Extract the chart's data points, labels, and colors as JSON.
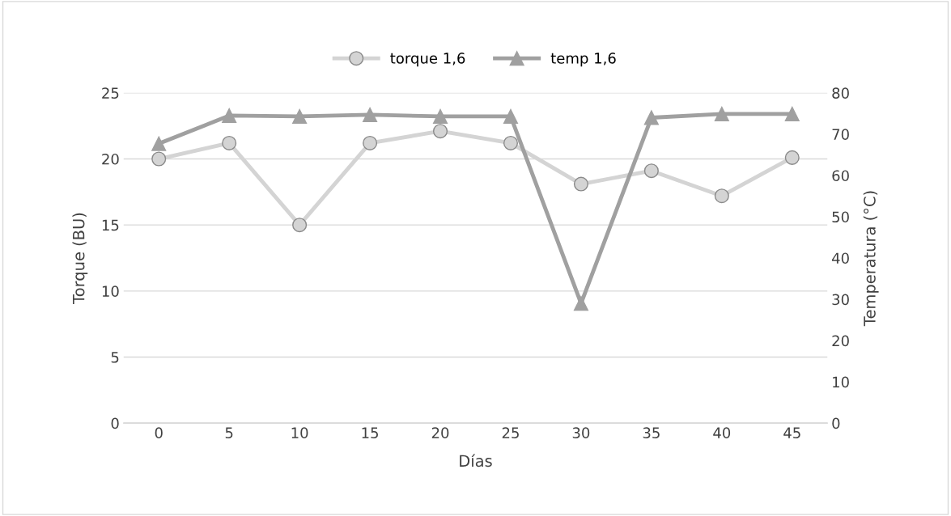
{
  "chart_data": {
    "type": "line",
    "xlabel": "Días",
    "ylabel": "Torque (BU)",
    "y2label": "Temperatura (°C)",
    "categories": [
      "0",
      "5",
      "10",
      "15",
      "20",
      "25",
      "30",
      "35",
      "40",
      "45"
    ],
    "series": [
      {
        "name": "torque 1,6",
        "color": "#d4d4d4",
        "marker": "circle",
        "values": [
          20.0,
          21.2,
          15.0,
          21.2,
          22.1,
          21.2,
          18.1,
          19.1,
          17.2,
          20.1
        ]
      },
      {
        "name": "temp 1,6",
        "color": "#a0a0a0",
        "marker": "triangle",
        "axis": "y2",
        "values": [
          67.7,
          74.5,
          74.3,
          74.7,
          74.3,
          74.3,
          29,
          74,
          74.9,
          74.9
        ]
      }
    ],
    "ylim": [
      0,
      25
    ],
    "yticks": [
      0,
      5,
      10,
      15,
      20,
      25
    ],
    "y2lim": [
      0,
      80
    ],
    "y2ticks": [
      0,
      10,
      20,
      30,
      40,
      50,
      60,
      70,
      80
    ],
    "grid": "y",
    "legend": "top",
    "line_style": "solid"
  }
}
